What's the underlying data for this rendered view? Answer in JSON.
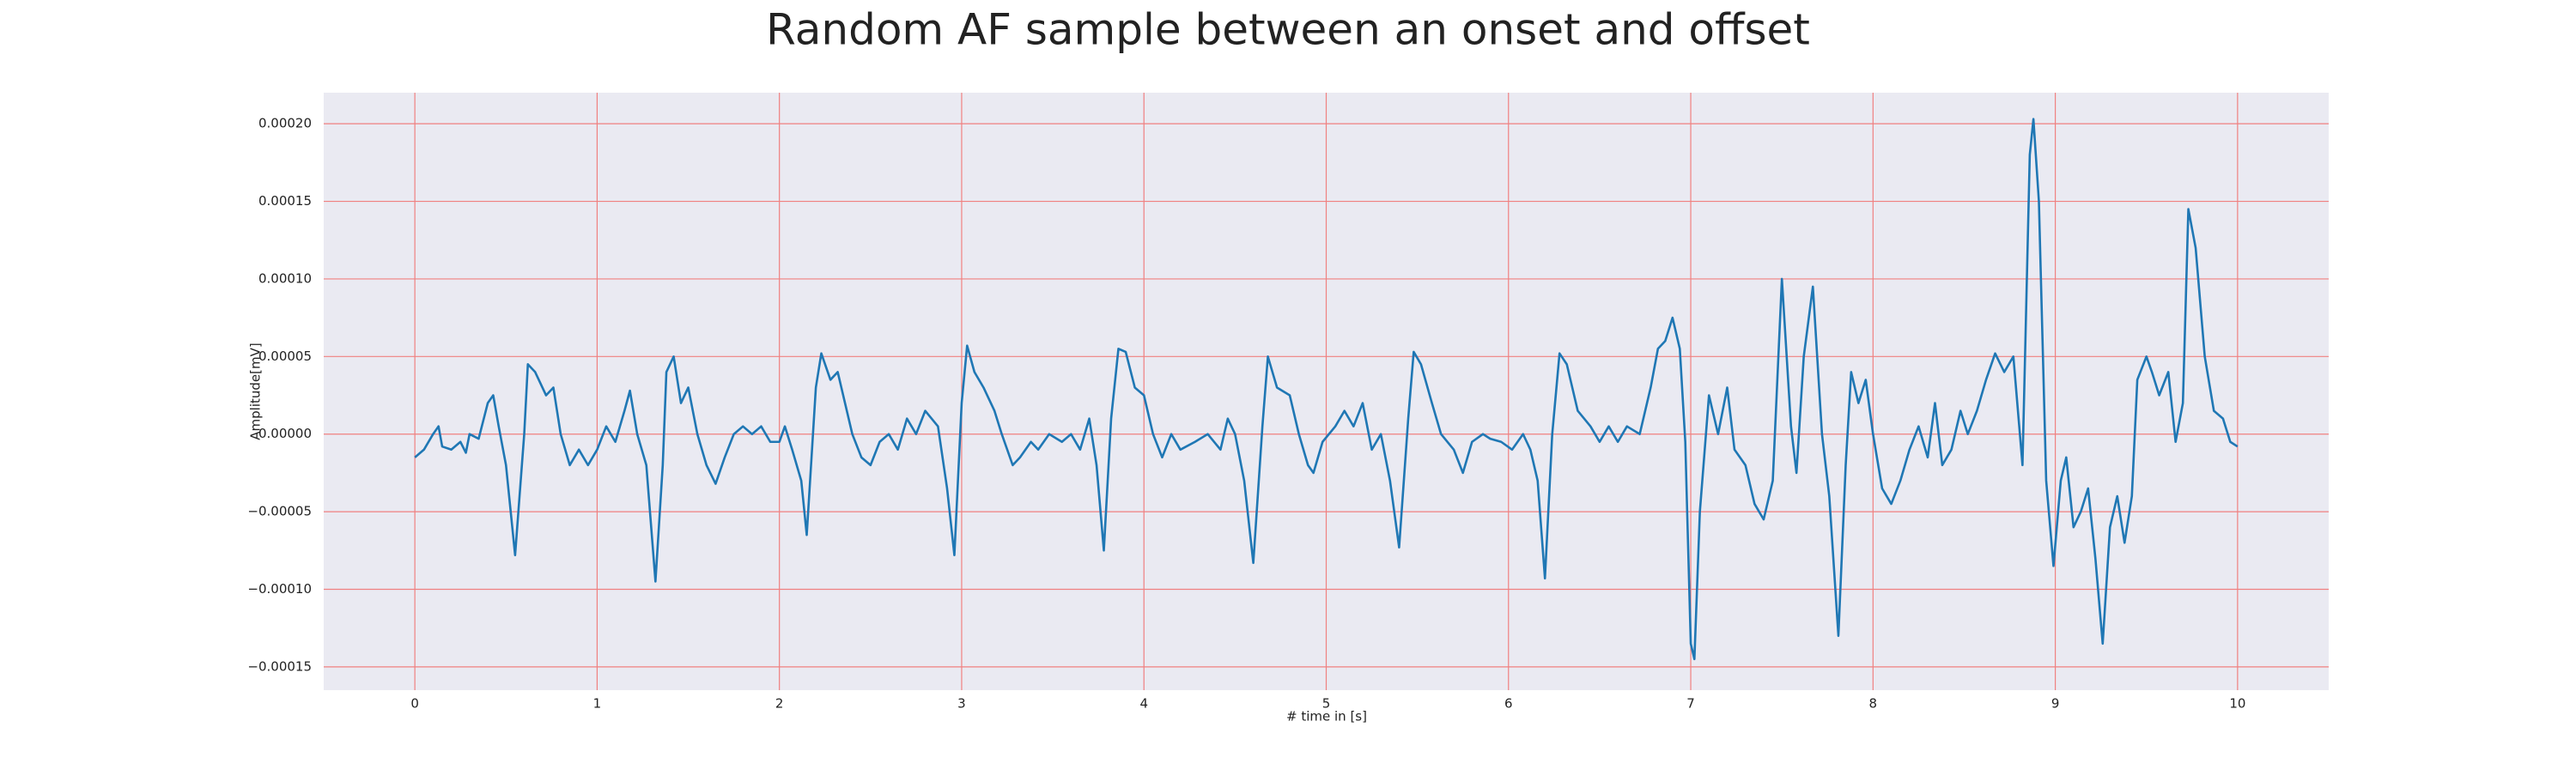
{
  "chart_data": {
    "type": "line",
    "title": "Random AF sample between an onset and offset",
    "x_label": "# time in [s]",
    "y_label": "Amplitude[mV]",
    "color": "#1f77b4",
    "grid": true,
    "grid_color": "#f08080",
    "xlim": [
      -0.5,
      10.5
    ],
    "ylim": [
      -0.000165,
      0.00022
    ],
    "xticks": [
      0,
      1,
      2,
      3,
      4,
      5,
      6,
      7,
      8,
      9,
      10
    ],
    "yticks": [
      {
        "value": -0.00015,
        "label": "−0.00015"
      },
      {
        "value": -0.0001,
        "label": "−0.00010"
      },
      {
        "value": -5e-05,
        "label": "−0.00005"
      },
      {
        "value": 0,
        "label": "0.00000"
      },
      {
        "value": 5e-05,
        "label": "0.00005"
      },
      {
        "value": 0.0001,
        "label": "0.00010"
      },
      {
        "value": 0.00015,
        "label": "0.00015"
      },
      {
        "value": 0.0002,
        "label": "0.00020"
      }
    ],
    "x": [
      0,
      0.05,
      0.1,
      0.13,
      0.15,
      0.2,
      0.25,
      0.28,
      0.3,
      0.35,
      0.4,
      0.43,
      0.46,
      0.5,
      0.55,
      0.6,
      0.62,
      0.66,
      0.72,
      0.76,
      0.8,
      0.85,
      0.9,
      0.95,
      1.0,
      1.05,
      1.1,
      1.15,
      1.18,
      1.22,
      1.27,
      1.32,
      1.36,
      1.38,
      1.42,
      1.46,
      1.5,
      1.55,
      1.6,
      1.65,
      1.7,
      1.75,
      1.8,
      1.85,
      1.9,
      1.95,
      2.0,
      2.03,
      2.07,
      2.12,
      2.15,
      2.2,
      2.23,
      2.28,
      2.32,
      2.36,
      2.4,
      2.45,
      2.5,
      2.55,
      2.6,
      2.65,
      2.7,
      2.75,
      2.8,
      2.87,
      2.92,
      2.96,
      3.0,
      3.03,
      3.07,
      3.12,
      3.18,
      3.22,
      3.28,
      3.32,
      3.38,
      3.42,
      3.48,
      3.55,
      3.6,
      3.65,
      3.7,
      3.74,
      3.78,
      3.82,
      3.86,
      3.9,
      3.95,
      4.0,
      4.05,
      4.1,
      4.15,
      4.2,
      4.28,
      4.35,
      4.42,
      4.46,
      4.5,
      4.55,
      4.6,
      4.65,
      4.68,
      4.73,
      4.8,
      4.85,
      4.9,
      4.93,
      4.98,
      5.05,
      5.1,
      5.15,
      5.2,
      5.25,
      5.3,
      5.35,
      5.4,
      5.45,
      5.48,
      5.52,
      5.58,
      5.63,
      5.7,
      5.75,
      5.8,
      5.86,
      5.9,
      5.96,
      6.02,
      6.08,
      6.12,
      6.16,
      6.2,
      6.24,
      6.28,
      6.32,
      6.38,
      6.45,
      6.5,
      6.55,
      6.6,
      6.65,
      6.72,
      6.78,
      6.82,
      6.86,
      6.9,
      6.94,
      6.97,
      7.0,
      7.02,
      7.05,
      7.1,
      7.15,
      7.2,
      7.24,
      7.3,
      7.35,
      7.4,
      7.45,
      7.5,
      7.55,
      7.58,
      7.62,
      7.67,
      7.72,
      7.76,
      7.81,
      7.85,
      7.88,
      7.92,
      7.96,
      8.0,
      8.05,
      8.1,
      8.15,
      8.2,
      8.25,
      8.3,
      8.34,
      8.38,
      8.43,
      8.48,
      8.52,
      8.57,
      8.62,
      8.67,
      8.72,
      8.77,
      8.82,
      8.86,
      8.88,
      8.91,
      8.95,
      8.99,
      9.03,
      9.06,
      9.1,
      9.14,
      9.18,
      9.22,
      9.26,
      9.3,
      9.34,
      9.38,
      9.42,
      9.45,
      9.5,
      9.53,
      9.57,
      9.62,
      9.66,
      9.7,
      9.73,
      9.77,
      9.82,
      9.87,
      9.92,
      9.96,
      10.0
    ],
    "values": [
      -1.5e-05,
      -1e-05,
      0,
      5e-06,
      -8e-06,
      -1e-05,
      -5e-06,
      -1.2e-05,
      0,
      -3e-06,
      2e-05,
      2.5e-05,
      5e-06,
      -2e-05,
      -7.8e-05,
      0,
      4.5e-05,
      4e-05,
      2.5e-05,
      3e-05,
      0,
      -2e-05,
      -1e-05,
      -2e-05,
      -1e-05,
      5e-06,
      -5e-06,
      1.5e-05,
      2.8e-05,
      0,
      -2e-05,
      -9.5e-05,
      -2e-05,
      4e-05,
      5e-05,
      2e-05,
      3e-05,
      0,
      -2e-05,
      -3.2e-05,
      -1.5e-05,
      0,
      5e-06,
      0,
      5e-06,
      -5e-06,
      -5e-06,
      5e-06,
      -1e-05,
      -3e-05,
      -6.5e-05,
      3e-05,
      5.2e-05,
      3.5e-05,
      4e-05,
      2e-05,
      0,
      -1.5e-05,
      -2e-05,
      -5e-06,
      0,
      -1e-05,
      1e-05,
      0,
      1.5e-05,
      5e-06,
      -3.5e-05,
      -7.8e-05,
      2e-05,
      5.7e-05,
      4e-05,
      3e-05,
      1.5e-05,
      0,
      -2e-05,
      -1.5e-05,
      -5e-06,
      -1e-05,
      0,
      -5e-06,
      0,
      -1e-05,
      1e-05,
      -2e-05,
      -7.5e-05,
      1e-05,
      5.5e-05,
      5.3e-05,
      3e-05,
      2.5e-05,
      0,
      -1.5e-05,
      0,
      -1e-05,
      -5e-06,
      0,
      -1e-05,
      1e-05,
      0,
      -3e-05,
      -8.3e-05,
      5e-06,
      5e-05,
      3e-05,
      2.5e-05,
      0,
      -2e-05,
      -2.5e-05,
      -5e-06,
      5e-06,
      1.5e-05,
      5e-06,
      2e-05,
      -1e-05,
      0,
      -3e-05,
      -7.3e-05,
      1e-05,
      5.3e-05,
      4.5e-05,
      2e-05,
      0,
      -1e-05,
      -2.5e-05,
      -5e-06,
      0,
      -3e-06,
      -5e-06,
      -1e-05,
      0,
      -1e-05,
      -3e-05,
      -9.3e-05,
      0,
      5.2e-05,
      4.5e-05,
      1.5e-05,
      5e-06,
      -5e-06,
      5e-06,
      -5e-06,
      5e-06,
      0,
      3e-05,
      5.5e-05,
      6e-05,
      7.5e-05,
      5.5e-05,
      -5e-06,
      -0.000135,
      -0.000145,
      -5e-05,
      2.5e-05,
      0,
      3e-05,
      -1e-05,
      -2e-05,
      -4.5e-05,
      -5.5e-05,
      -3e-05,
      0.0001,
      5e-06,
      -2.5e-05,
      5e-05,
      9.5e-05,
      0,
      -4e-05,
      -0.00013,
      -2e-05,
      4e-05,
      2e-05,
      3.5e-05,
      0,
      -3.5e-05,
      -4.5e-05,
      -3e-05,
      -1e-05,
      5e-06,
      -1.5e-05,
      2e-05,
      -2e-05,
      -1e-05,
      1.5e-05,
      0,
      1.5e-05,
      3.5e-05,
      5.2e-05,
      4e-05,
      5e-05,
      -2e-05,
      0.00018,
      0.000203,
      0.00015,
      -3e-05,
      -8.5e-05,
      -3e-05,
      -1.5e-05,
      -6e-05,
      -5e-05,
      -3.5e-05,
      -8e-05,
      -0.000135,
      -6e-05,
      -4e-05,
      -7e-05,
      -4e-05,
      3.5e-05,
      5e-05,
      4e-05,
      2.5e-05,
      4e-05,
      -5e-06,
      2e-05,
      0.000145,
      0.00012,
      5e-05,
      1.5e-05,
      1e-05,
      -5e-06,
      -8e-06
    ]
  }
}
